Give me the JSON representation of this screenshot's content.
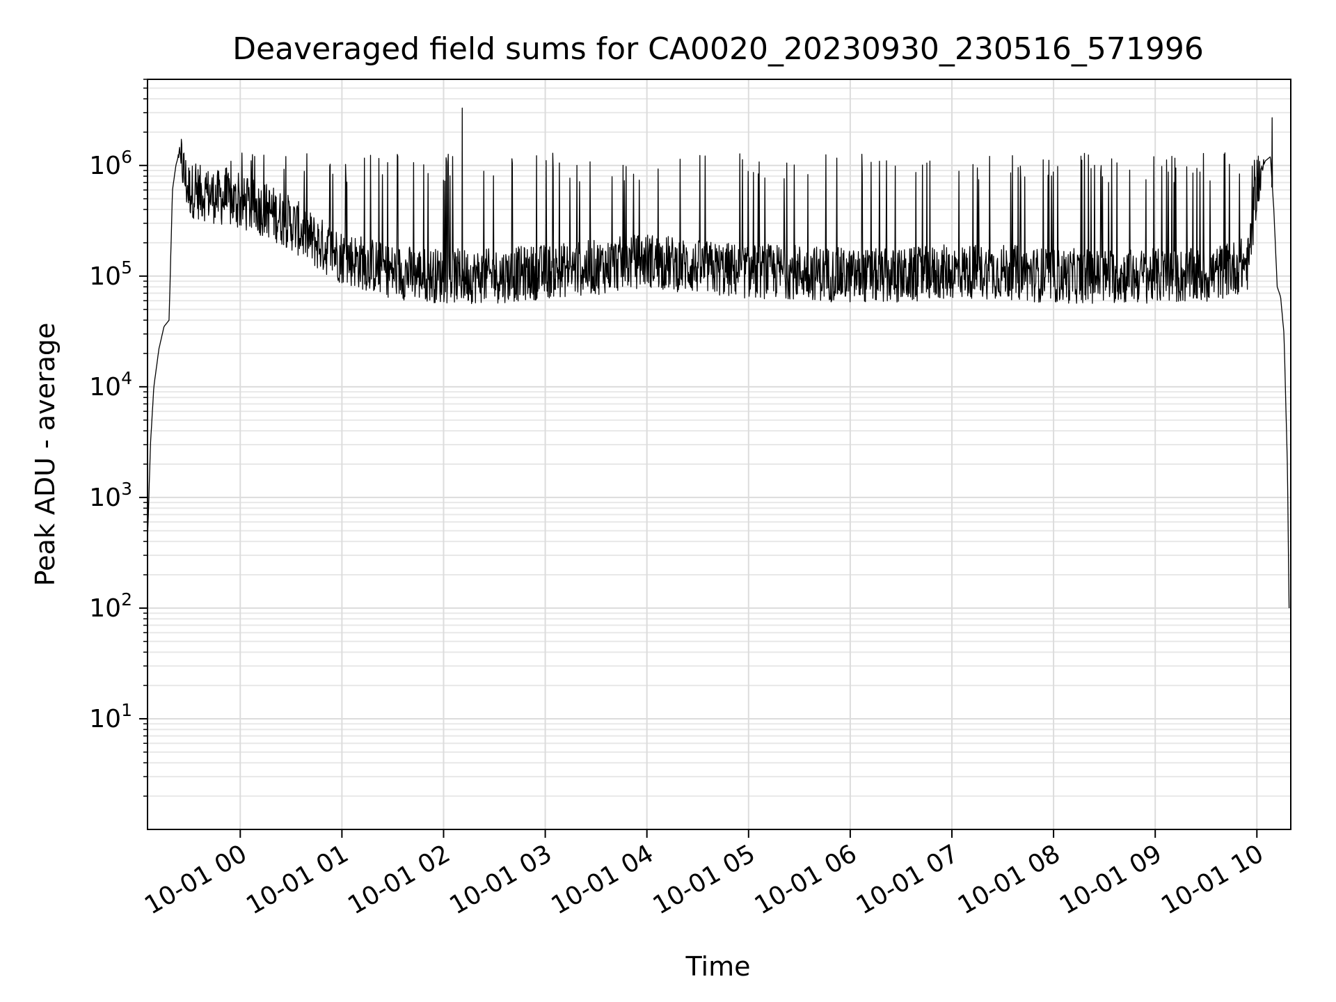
{
  "chart_data": {
    "type": "line",
    "title": "Deaveraged field sums for CA0020_20230930_230516_571996",
    "xlabel": "Time",
    "ylabel": "Peak ADU - average",
    "yscale": "log",
    "ylim": [
      1,
      6000000
    ],
    "xlim": [
      "2023-09-30 23:05:16",
      "2023-10-01 10:20:00"
    ],
    "grid": {
      "major": true,
      "minor": true
    },
    "x_ticks": [
      {
        "value": "2023-10-01 00:00",
        "label": "10-01 00"
      },
      {
        "value": "2023-10-01 01:00",
        "label": "10-01 01"
      },
      {
        "value": "2023-10-01 02:00",
        "label": "10-01 02"
      },
      {
        "value": "2023-10-01 03:00",
        "label": "10-01 03"
      },
      {
        "value": "2023-10-01 04:00",
        "label": "10-01 04"
      },
      {
        "value": "2023-10-01 05:00",
        "label": "10-01 05"
      },
      {
        "value": "2023-10-01 06:00",
        "label": "10-01 06"
      },
      {
        "value": "2023-10-01 07:00",
        "label": "10-01 07"
      },
      {
        "value": "2023-10-01 08:00",
        "label": "10-01 08"
      },
      {
        "value": "2023-10-01 09:00",
        "label": "10-01 09"
      },
      {
        "value": "2023-10-01 10:00",
        "label": "10-01 10"
      }
    ],
    "y_ticks": [
      {
        "value": 10,
        "base": "10",
        "exp": "1"
      },
      {
        "value": 100,
        "base": "10",
        "exp": "2"
      },
      {
        "value": 1000,
        "base": "10",
        "exp": "3"
      },
      {
        "value": 10000,
        "base": "10",
        "exp": "4"
      },
      {
        "value": 100000,
        "base": "10",
        "exp": "5"
      },
      {
        "value": 1000000,
        "base": "10",
        "exp": "6"
      }
    ],
    "line_color": "#000000",
    "series": [
      {
        "x": [
          "2023-09-30 23:05:16",
          "2023-09-30 23:07",
          "2023-09-30 23:09",
          "2023-09-30 23:12",
          "2023-09-30 23:15",
          "2023-09-30 23:18",
          "2023-09-30 23:20",
          "2023-09-30 23:22",
          "2023-09-30 23:24",
          "2023-09-30 23:26",
          "2023-09-30 23:28",
          "2023-09-30 23:30",
          "2023-09-30 23:40",
          "2023-09-30 23:50",
          "2023-10-01 00:00",
          "2023-10-01 00:15",
          "2023-10-01 00:30",
          "2023-10-01 00:45",
          "2023-10-01 01:00",
          "2023-10-01 01:30",
          "2023-10-01 02:00",
          "2023-10-01 02:30",
          "2023-10-01 03:00",
          "2023-10-01 03:30",
          "2023-10-01 04:00",
          "2023-10-01 04:30",
          "2023-10-01 05:00",
          "2023-10-01 05:30",
          "2023-10-01 06:00",
          "2023-10-01 06:30",
          "2023-10-01 07:00",
          "2023-10-01 07:30",
          "2023-10-01 08:00",
          "2023-10-01 08:30",
          "2023-10-01 09:00",
          "2023-10-01 09:30",
          "2023-10-01 09:55",
          "2023-10-01 10:00",
          "2023-10-01 10:05",
          "2023-10-01 10:08",
          "2023-10-01 10:10",
          "2023-10-01 10:12",
          "2023-10-01 10:14",
          "2023-10-01 10:16",
          "2023-10-01 10:18",
          "2023-10-01 10:19"
        ],
        "y": [
          400,
          3000,
          10000,
          22000,
          35000,
          40000,
          600000,
          1000000,
          1300000,
          1000000,
          700000,
          600000,
          550000,
          500000,
          450000,
          400000,
          300000,
          200000,
          150000,
          110000,
          100000,
          100000,
          110000,
          120000,
          140000,
          120000,
          110000,
          110000,
          100000,
          100000,
          110000,
          110000,
          100000,
          100000,
          100000,
          100000,
          130000,
          700000,
          1100000,
          1200000,
          400000,
          80000,
          65000,
          30000,
          2000,
          100
        ]
      }
    ],
    "annotations": [
      {
        "x": "2023-10-01 02:11",
        "y": 3300000,
        "text": ""
      },
      {
        "x": "2023-10-01 10:09",
        "y": 2700000,
        "text": ""
      }
    ]
  }
}
